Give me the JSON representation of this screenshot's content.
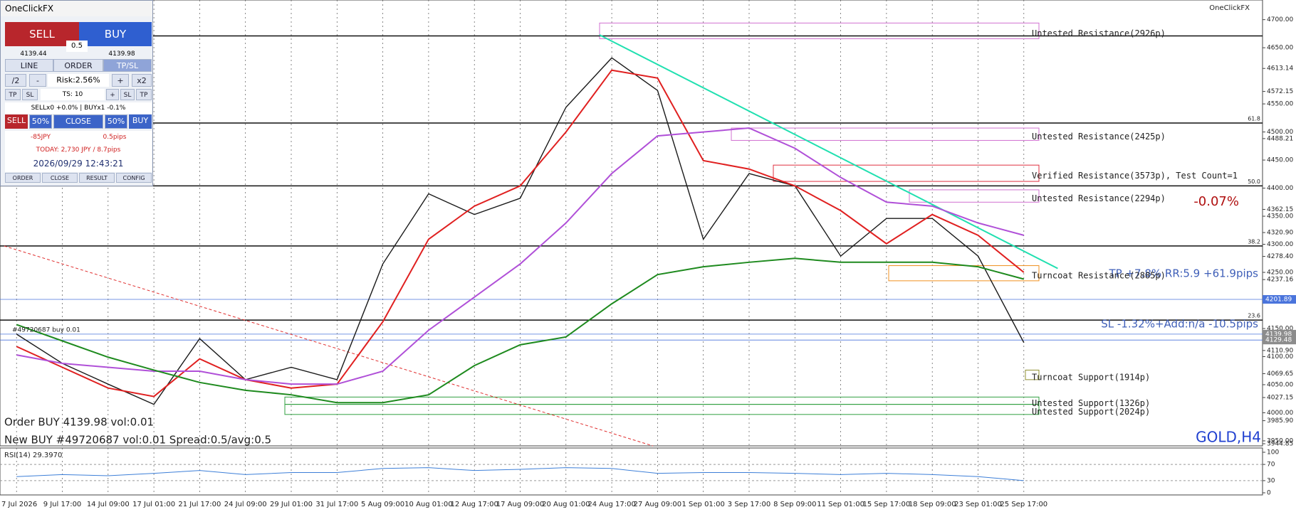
{
  "panel": {
    "title": "OneClickFX",
    "sell": "SELL",
    "buy": "BUY",
    "spread": "0.5",
    "bid": "4139.44",
    "ask": "4139.98",
    "tabs": [
      "LINE",
      "ORDER",
      "TP/SL"
    ],
    "risk_row": [
      "/2",
      "-",
      "Risk:2.56%",
      "+",
      "x2"
    ],
    "ts_row": [
      "TP",
      "SL",
      "TS: 10",
      "+",
      "SL",
      "TP"
    ],
    "positions": "SELLx0 +0.0% | BUYx1 -0.1%",
    "close_row": [
      "SELL",
      "50%",
      "CLOSE",
      "50%",
      "BUY"
    ],
    "pnl": "-85JPY",
    "pips": "0.5pips",
    "today": "TODAY: 2,730 JPY / 8.7pips",
    "clock": "2026/09/29  12:43:21",
    "footer": [
      "ORDER",
      "CLOSE",
      "RESULT",
      "CONFIG"
    ]
  },
  "chart_data": {
    "type": "line",
    "symbol": "GOLD,H4",
    "brand": "OneClickFX",
    "categories": [
      "7 Jul 2026",
      "9 Jul 17:00",
      "14 Jul 09:00",
      "17 Jul 01:00",
      "21 Jul 17:00",
      "24 Jul 09:00",
      "29 Jul 01:00",
      "31 Jul 17:00",
      "5 Aug 09:00",
      "10 Aug 01:00",
      "12 Aug 17:00",
      "17 Aug 09:00",
      "20 Aug 01:00",
      "24 Aug 17:00",
      "27 Aug 09:00",
      "1 Sep 01:00",
      "3 Sep 17:00",
      "8 Sep 09:00",
      "11 Sep 01:00",
      "15 Sep 17:00",
      "18 Sep 09:00",
      "23 Sep 01:00",
      "25 Sep 17:00"
    ],
    "ylim": [
      3943.6,
      4735
    ],
    "grid": true,
    "yticks": [
      {
        "value": 4700,
        "label": "4700.00"
      },
      {
        "value": 4650,
        "label": "4650.00"
      },
      4613.14,
      4572.15,
      {
        "value": 4550,
        "label": "4550.00"
      },
      {
        "value": 4500,
        "label": "4500.00"
      },
      4488.21,
      {
        "value": 4450,
        "label": "4450.00"
      },
      {
        "value": 4400,
        "label": "4400.00"
      },
      4362.15,
      {
        "value": 4350,
        "label": "4350.00"
      },
      {
        "value": 4320.9,
        "label": "4320.90"
      },
      {
        "value": 4300,
        "label": "4300.00"
      },
      {
        "value": 4278.4,
        "label": "4278.40"
      },
      {
        "value": 4250,
        "label": "4250.00"
      },
      4237.16,
      {
        "value": 4150,
        "label": "4150.00"
      },
      {
        "value": 4110.9,
        "label": "4110.90"
      },
      {
        "value": 4100,
        "label": "4100.00"
      },
      4069.65,
      {
        "value": 4050,
        "label": "4050.00"
      },
      4027.15,
      {
        "value": 4000,
        "label": "4000.00"
      },
      {
        "value": 3985.9,
        "label": "3985.90"
      },
      {
        "value": 3950,
        "label": "3950.00"
      },
      3944.85
    ],
    "series": [
      {
        "color": "#1a1a1a",
        "width": 1.4,
        "values": [
          4140,
          4088,
          4051,
          4015,
          4132,
          4059,
          4081,
          4059,
          4265,
          4390,
          4353,
          4382,
          4544,
          4632,
          4574,
          4309,
          4426,
          4404,
          4279,
          4346,
          4346,
          4279,
          4125
        ]
      },
      {
        "color": "#e02020",
        "width": 2,
        "values": [
          4118,
          4081,
          4044,
          4029,
          4096,
          4059,
          4044,
          4051,
          4162,
          4309,
          4368,
          4404,
          4500,
          4610,
          4596,
          4449,
          4434,
          4404,
          4360,
          4301,
          4353,
          4316,
          4250
        ]
      },
      {
        "color": "#b050d8",
        "width": 2,
        "values": [
          4103,
          4088,
          4081,
          4074,
          4074,
          4059,
          4051,
          4051,
          4074,
          4147,
          4206,
          4265,
          4338,
          4426,
          4493,
          4500,
          4507,
          4471,
          4419,
          4375,
          4368,
          4338,
          4316
        ]
      },
      {
        "color": "#1e8a1e",
        "width": 2,
        "values": [
          4157,
          4128,
          4099,
          4076,
          4054,
          4040,
          4032,
          4018,
          4018,
          4032,
          4084,
          4121,
          4135,
          4194,
          4246,
          4260,
          4268,
          4275,
          4268,
          4268,
          4268,
          4260,
          4238
        ]
      }
    ],
    "price_tags": [
      {
        "value": 4201.89,
        "label": "4201.89",
        "color": "#4a74dc"
      },
      {
        "value": 4139.98,
        "label": "4139.98",
        "color": "#8c8c8c"
      },
      {
        "value": 4129.48,
        "label": "4129.48",
        "color": "#8c8c8c"
      }
    ],
    "zones": [
      {
        "top": 4694,
        "bottom": 4666,
        "label": "Untested Resistance(2926p)",
        "color": "#d070d0"
      },
      {
        "top": 4507,
        "bottom": 4485,
        "label": "Untested Resistance(2425p)",
        "color": "#d070d0"
      },
      {
        "top": 4441,
        "bottom": 4412,
        "label": "Verified Resistance(3573p), Test Count=1",
        "color": "#e03040"
      },
      {
        "top": 4397,
        "bottom": 4375,
        "label": "Untested Resistance(2294p)",
        "color": "#d070d0"
      },
      {
        "top": 4262,
        "bottom": 4235,
        "label": "Turncoat Resistance(2885p)",
        "color": "#f09020"
      },
      {
        "top": 4076,
        "bottom": 4059,
        "label": "Turncoat Support(1914p)",
        "color": "#909030"
      },
      {
        "top": 4028,
        "bottom": 4015,
        "label": "Untested Support(1326p)",
        "color": "#30a040"
      },
      {
        "top": 4015,
        "bottom": 3997,
        "label": "Untested Support(2024p)",
        "color": "#30a040"
      }
    ],
    "fib": [
      {
        "price": 4671
      },
      {
        "price": 4516,
        "label": "61.8"
      },
      {
        "price": 4404,
        "label": "50.0"
      },
      {
        "price": 4297,
        "label": "38.2"
      },
      {
        "price": 4165,
        "label": "23.6"
      }
    ],
    "trendlines": [
      {
        "x": [
          12.73,
          22.74
        ],
        "y": [
          4673,
          4257
        ],
        "color": "#20e0b0",
        "dash": false
      },
      {
        "x": [
          -0.27,
          13.9
        ],
        "y": [
          4297,
          3941
        ],
        "color": "#e03030",
        "dash": true
      }
    ],
    "annotations": {
      "change": "-0.07%",
      "tp": "TP +7.8% RR:5.9 +61.9pips",
      "sl": "SL -1.32%+Add:n/a -10.5pips",
      "order": "Order BUY 4139.98 vol:0.01",
      "new": "New BUY #49720687 vol:0.01 Spread:0.5/avg:0.5",
      "ticket": "#49720687 buy 0.01"
    },
    "rsi": {
      "title": "RSI(14) 29.3970",
      "ylim": [
        0,
        100
      ],
      "yticks": [
        100,
        70,
        30,
        0
      ],
      "color": "#3d7fd8",
      "values": [
        40,
        45,
        42,
        48,
        55,
        45,
        50,
        50,
        60,
        62,
        55,
        58,
        62,
        60,
        48,
        50,
        50,
        48,
        45,
        48,
        45,
        40,
        30
      ]
    }
  }
}
